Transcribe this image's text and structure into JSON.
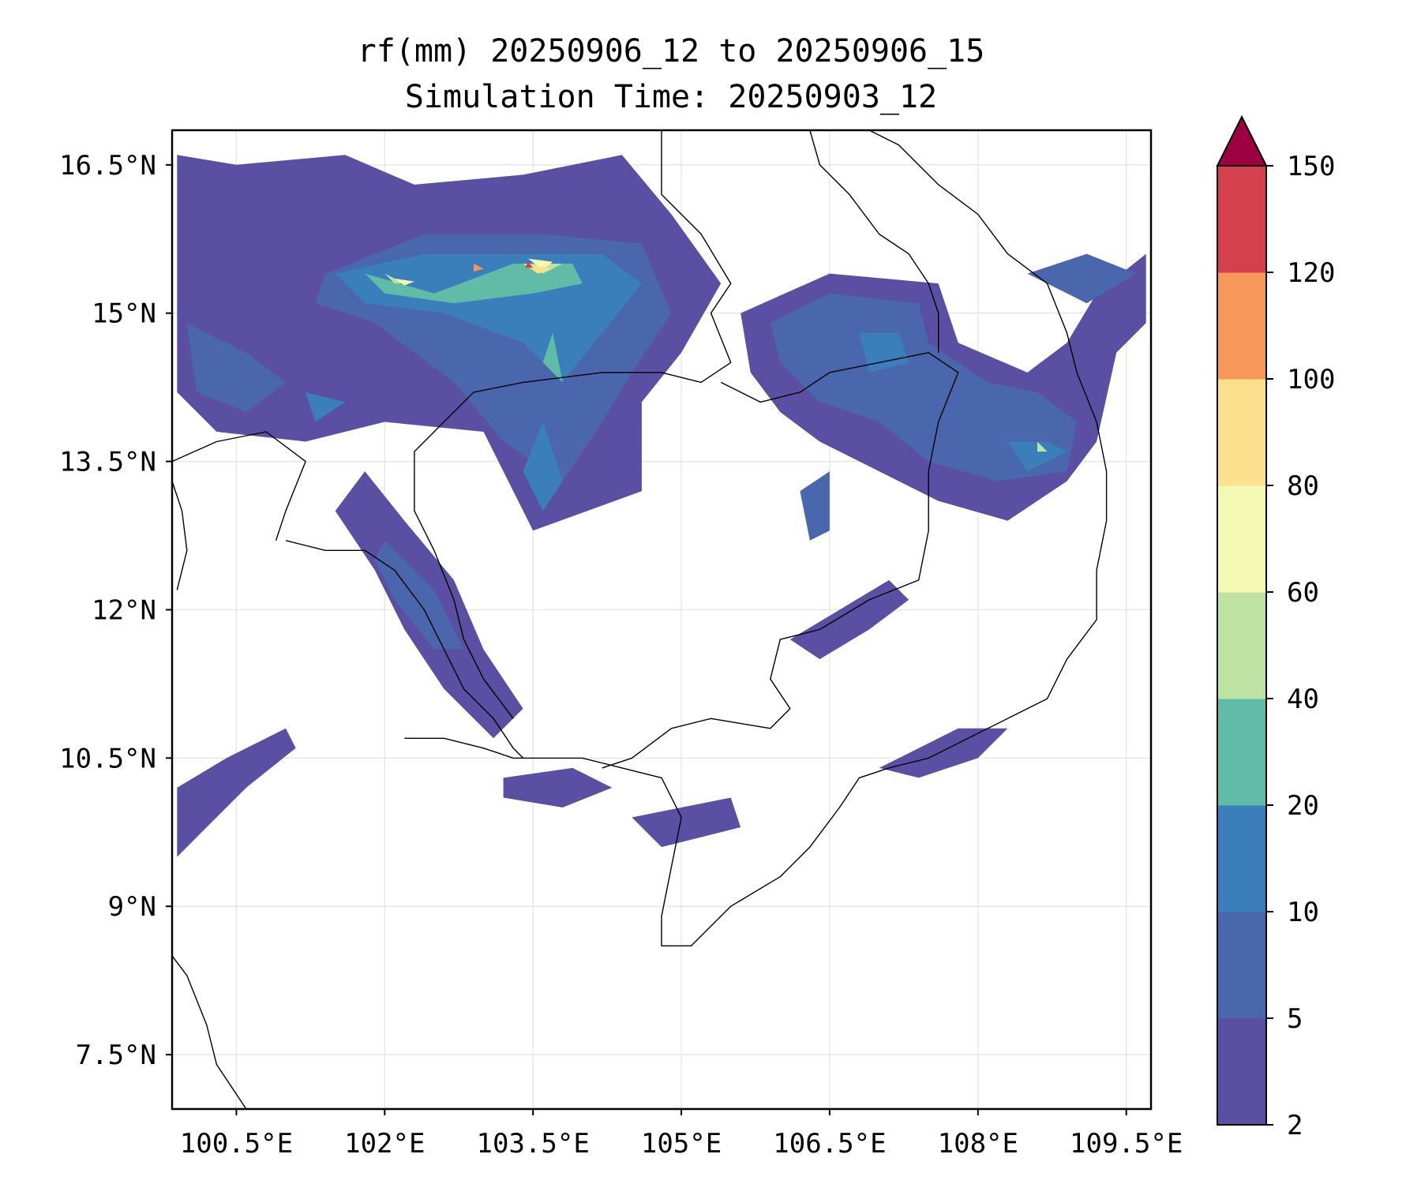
{
  "title": {
    "line1": "rf(mm) 20250906_12 to 20250906_15",
    "line2": "Simulation Time: 20250903_12"
  },
  "map": {
    "lon_range": [
      99.85,
      109.75
    ],
    "lat_range": [
      6.95,
      16.85
    ],
    "x_ticks": [
      {
        "value": 100.5,
        "label": "100.5°E"
      },
      {
        "value": 102,
        "label": "102°E"
      },
      {
        "value": 103.5,
        "label": "103.5°E"
      },
      {
        "value": 105,
        "label": "105°E"
      },
      {
        "value": 106.5,
        "label": "106.5°E"
      },
      {
        "value": 108,
        "label": "108°E"
      },
      {
        "value": 109.5,
        "label": "109.5°E"
      }
    ],
    "y_ticks": [
      {
        "value": 16.5,
        "label": "16.5°N"
      },
      {
        "value": 15,
        "label": "15°N"
      },
      {
        "value": 13.5,
        "label": "13.5°N"
      },
      {
        "value": 12,
        "label": "12°N"
      },
      {
        "value": 10.5,
        "label": "10.5°N"
      },
      {
        "value": 9,
        "label": "9°N"
      },
      {
        "value": 7.5,
        "label": "7.5°N"
      }
    ],
    "grid": true
  },
  "colorbar": {
    "levels": [
      "2",
      "5",
      "10",
      "20",
      "40",
      "60",
      "80",
      "100",
      "120",
      "150"
    ],
    "colors": [
      "#5a4fa2",
      "#4a66ad",
      "#3a7fbb",
      "#60bba7",
      "#bde3a3",
      "#f3f9b2",
      "#fbe08e",
      "#f7985a",
      "#d5404f"
    ],
    "extend_color": "#9e0142"
  },
  "rain_regions": [
    {
      "level": 0,
      "points": [
        [
          100.5,
          16.5
        ],
        [
          101.6,
          16.6
        ],
        [
          102.3,
          16.3
        ],
        [
          103.4,
          16.4
        ],
        [
          104.4,
          16.6
        ],
        [
          104.9,
          16.0
        ],
        [
          105.4,
          15.3
        ],
        [
          105.0,
          14.6
        ],
        [
          104.6,
          14.1
        ],
        [
          104.6,
          13.2
        ],
        [
          103.5,
          12.8
        ],
        [
          103.0,
          13.8
        ],
        [
          102.0,
          13.9
        ],
        [
          101.2,
          13.7
        ],
        [
          100.3,
          13.8
        ],
        [
          99.9,
          14.2
        ],
        [
          99.9,
          16.6
        ]
      ]
    },
    {
      "level": 0,
      "points": [
        [
          105.6,
          15.0
        ],
        [
          106.5,
          15.4
        ],
        [
          107.6,
          15.3
        ],
        [
          107.8,
          14.7
        ],
        [
          108.5,
          14.4
        ],
        [
          108.9,
          14.7
        ],
        [
          109.2,
          15.2
        ],
        [
          109.7,
          15.6
        ],
        [
          109.7,
          14.9
        ],
        [
          109.4,
          14.6
        ],
        [
          109.2,
          13.7
        ],
        [
          108.9,
          13.3
        ],
        [
          108.3,
          12.9
        ],
        [
          107.6,
          13.1
        ],
        [
          107.0,
          13.4
        ],
        [
          106.4,
          13.7
        ],
        [
          106.0,
          14.0
        ],
        [
          105.7,
          14.4
        ]
      ]
    },
    {
      "level": 0,
      "points": [
        [
          101.8,
          13.4
        ],
        [
          102.2,
          12.9
        ],
        [
          102.7,
          12.3
        ],
        [
          103.0,
          11.6
        ],
        [
          103.4,
          11.0
        ],
        [
          103.1,
          10.7
        ],
        [
          102.6,
          11.2
        ],
        [
          102.2,
          11.8
        ],
        [
          101.9,
          12.4
        ],
        [
          101.5,
          13.0
        ]
      ]
    },
    {
      "level": 0,
      "points": [
        [
          99.9,
          10.2
        ],
        [
          100.4,
          10.5
        ],
        [
          101.0,
          10.8
        ],
        [
          101.1,
          10.6
        ],
        [
          100.6,
          10.2
        ],
        [
          100.2,
          9.8
        ],
        [
          99.9,
          9.5
        ]
      ]
    },
    {
      "level": 0,
      "points": [
        [
          103.2,
          10.3
        ],
        [
          103.9,
          10.4
        ],
        [
          104.3,
          10.2
        ],
        [
          103.8,
          10.0
        ],
        [
          103.2,
          10.1
        ]
      ]
    },
    {
      "level": 0,
      "points": [
        [
          104.5,
          9.9
        ],
        [
          105.5,
          10.1
        ],
        [
          105.6,
          9.8
        ],
        [
          104.8,
          9.6
        ]
      ]
    },
    {
      "level": 0,
      "points": [
        [
          106.1,
          11.7
        ],
        [
          106.6,
          12.0
        ],
        [
          107.1,
          12.3
        ],
        [
          107.3,
          12.1
        ],
        [
          106.9,
          11.8
        ],
        [
          106.4,
          11.5
        ]
      ]
    },
    {
      "level": 0,
      "points": [
        [
          107.0,
          10.4
        ],
        [
          107.8,
          10.8
        ],
        [
          108.3,
          10.8
        ],
        [
          108.0,
          10.5
        ],
        [
          107.4,
          10.3
        ]
      ]
    },
    {
      "level": 1,
      "points": [
        [
          101.4,
          15.4
        ],
        [
          102.4,
          15.8
        ],
        [
          103.6,
          15.8
        ],
        [
          104.6,
          15.7
        ],
        [
          104.9,
          15.0
        ],
        [
          104.5,
          14.4
        ],
        [
          104.2,
          13.9
        ],
        [
          103.8,
          13.3
        ],
        [
          103.2,
          13.7
        ],
        [
          102.7,
          14.3
        ],
        [
          101.9,
          14.9
        ],
        [
          101.3,
          15.1
        ]
      ]
    },
    {
      "level": 1,
      "points": [
        [
          100.0,
          14.9
        ],
        [
          100.6,
          14.6
        ],
        [
          101.0,
          14.3
        ],
        [
          100.6,
          14.0
        ],
        [
          100.1,
          14.2
        ]
      ]
    },
    {
      "level": 1,
      "points": [
        [
          105.9,
          14.9
        ],
        [
          106.5,
          15.2
        ],
        [
          107.4,
          15.1
        ],
        [
          107.5,
          14.7
        ],
        [
          108.1,
          14.3
        ],
        [
          108.6,
          14.2
        ],
        [
          109.0,
          13.9
        ],
        [
          108.9,
          13.4
        ],
        [
          108.2,
          13.3
        ],
        [
          107.5,
          13.5
        ],
        [
          107.0,
          13.9
        ],
        [
          106.4,
          14.1
        ],
        [
          106.0,
          14.5
        ]
      ]
    },
    {
      "level": 1,
      "points": [
        [
          102.0,
          12.7
        ],
        [
          102.5,
          12.2
        ],
        [
          102.8,
          11.6
        ],
        [
          102.5,
          11.6
        ],
        [
          102.1,
          12.1
        ],
        [
          101.9,
          12.5
        ]
      ]
    },
    {
      "level": 1,
      "points": [
        [
          108.5,
          15.4
        ],
        [
          109.1,
          15.6
        ],
        [
          109.6,
          15.4
        ],
        [
          109.1,
          15.1
        ]
      ]
    },
    {
      "level": 1,
      "points": [
        [
          106.2,
          13.2
        ],
        [
          106.5,
          13.4
        ],
        [
          106.5,
          12.8
        ],
        [
          106.3,
          12.7
        ]
      ]
    },
    {
      "level": 2,
      "points": [
        [
          101.5,
          15.4
        ],
        [
          102.4,
          15.6
        ],
        [
          103.4,
          15.6
        ],
        [
          104.2,
          15.6
        ],
        [
          104.6,
          15.3
        ],
        [
          104.2,
          14.8
        ],
        [
          103.8,
          14.3
        ],
        [
          103.4,
          14.7
        ],
        [
          102.6,
          15.0
        ],
        [
          101.8,
          15.1
        ]
      ]
    },
    {
      "level": 2,
      "points": [
        [
          103.6,
          13.9
        ],
        [
          103.8,
          13.3
        ],
        [
          103.6,
          13.0
        ],
        [
          103.4,
          13.4
        ]
      ]
    },
    {
      "level": 2,
      "points": [
        [
          106.8,
          14.8
        ],
        [
          107.2,
          14.8
        ],
        [
          107.3,
          14.5
        ],
        [
          106.9,
          14.4
        ]
      ]
    },
    {
      "level": 2,
      "points": [
        [
          108.3,
          13.7
        ],
        [
          108.7,
          13.7
        ],
        [
          108.9,
          13.6
        ],
        [
          108.5,
          13.4
        ]
      ]
    },
    {
      "level": 2,
      "points": [
        [
          101.2,
          14.2
        ],
        [
          101.6,
          14.1
        ],
        [
          101.3,
          13.9
        ]
      ]
    },
    {
      "level": 3,
      "points": [
        [
          101.8,
          15.4
        ],
        [
          102.5,
          15.2
        ],
        [
          103.3,
          15.5
        ],
        [
          103.9,
          15.5
        ],
        [
          104.0,
          15.3
        ],
        [
          103.5,
          15.2
        ],
        [
          102.7,
          15.1
        ],
        [
          102.0,
          15.2
        ]
      ]
    },
    {
      "level": 3,
      "points": [
        [
          103.7,
          14.8
        ],
        [
          103.8,
          14.3
        ],
        [
          103.6,
          14.5
        ]
      ]
    },
    {
      "level": 4,
      "points": [
        [
          102.0,
          15.4
        ],
        [
          102.2,
          15.3
        ],
        [
          102.3,
          15.3
        ],
        [
          102.1,
          15.3
        ]
      ]
    },
    {
      "level": 4,
      "points": [
        [
          103.4,
          15.5
        ],
        [
          103.8,
          15.5
        ],
        [
          103.6,
          15.4
        ]
      ]
    },
    {
      "level": 4,
      "points": [
        [
          108.6,
          13.7
        ],
        [
          108.7,
          13.6
        ],
        [
          108.6,
          13.6
        ]
      ]
    },
    {
      "level": 5,
      "points": [
        [
          102.1,
          15.35
        ],
        [
          102.3,
          15.32
        ],
        [
          102.2,
          15.28
        ]
      ]
    },
    {
      "level": 5,
      "points": [
        [
          103.45,
          15.55
        ],
        [
          103.7,
          15.52
        ],
        [
          103.6,
          15.44
        ]
      ]
    },
    {
      "level": 6,
      "points": [
        [
          103.4,
          15.5
        ],
        [
          103.7,
          15.45
        ],
        [
          103.55,
          15.4
        ]
      ]
    },
    {
      "level": 7,
      "points": [
        [
          102.9,
          15.5
        ],
        [
          103.0,
          15.45
        ],
        [
          102.9,
          15.42
        ]
      ]
    },
    {
      "level": 8,
      "points": [
        [
          103.45,
          15.52
        ],
        [
          103.5,
          15.46
        ],
        [
          103.42,
          15.46
        ]
      ]
    }
  ],
  "coastlines": [
    [
      [
        102.2,
        10.7
      ],
      [
        102.6,
        10.7
      ],
      [
        103.0,
        10.6
      ],
      [
        103.3,
        10.5
      ],
      [
        103.6,
        10.5
      ],
      [
        104.0,
        10.5
      ],
      [
        104.4,
        10.4
      ],
      [
        104.8,
        10.3
      ],
      [
        105.0,
        9.9
      ],
      [
        104.9,
        9.4
      ],
      [
        104.8,
        8.9
      ],
      [
        104.8,
        8.6
      ],
      [
        105.1,
        8.6
      ],
      [
        105.5,
        9.0
      ],
      [
        106.0,
        9.3
      ],
      [
        106.3,
        9.6
      ],
      [
        106.6,
        10.0
      ],
      [
        106.8,
        10.3
      ],
      [
        107.1,
        10.4
      ],
      [
        107.5,
        10.5
      ],
      [
        107.9,
        10.7
      ],
      [
        108.3,
        10.9
      ],
      [
        108.7,
        11.1
      ],
      [
        108.9,
        11.5
      ],
      [
        109.2,
        11.9
      ],
      [
        109.2,
        12.4
      ],
      [
        109.3,
        12.9
      ],
      [
        109.3,
        13.4
      ],
      [
        109.2,
        13.9
      ],
      [
        109.0,
        14.4
      ],
      [
        108.9,
        14.8
      ],
      [
        108.7,
        15.3
      ],
      [
        108.3,
        15.6
      ],
      [
        108.0,
        16.0
      ],
      [
        107.6,
        16.3
      ],
      [
        107.2,
        16.7
      ],
      [
        106.9,
        16.85
      ]
    ],
    [
      [
        101.0,
        12.7
      ],
      [
        101.4,
        12.6
      ],
      [
        101.8,
        12.6
      ],
      [
        102.1,
        12.4
      ],
      [
        102.4,
        12.0
      ],
      [
        102.6,
        11.6
      ],
      [
        102.8,
        11.2
      ],
      [
        103.1,
        10.9
      ],
      [
        103.3,
        10.6
      ],
      [
        103.4,
        10.5
      ]
    ],
    [
      [
        99.85,
        8.5
      ],
      [
        100.0,
        8.3
      ],
      [
        100.2,
        7.8
      ],
      [
        100.3,
        7.4
      ],
      [
        100.5,
        7.1
      ],
      [
        100.6,
        6.95
      ]
    ],
    [
      [
        99.85,
        13.3
      ],
      [
        99.95,
        13.0
      ],
      [
        100.0,
        12.6
      ],
      [
        99.9,
        12.2
      ]
    ]
  ],
  "borders": [
    [
      [
        104.8,
        16.85
      ],
      [
        104.8,
        16.2
      ],
      [
        105.2,
        15.8
      ],
      [
        105.5,
        15.3
      ],
      [
        105.3,
        15.0
      ],
      [
        105.5,
        14.5
      ],
      [
        105.2,
        14.3
      ],
      [
        104.8,
        14.4
      ],
      [
        104.2,
        14.4
      ],
      [
        103.4,
        14.3
      ],
      [
        102.9,
        14.2
      ],
      [
        102.6,
        13.9
      ],
      [
        102.3,
        13.6
      ],
      [
        102.3,
        13.0
      ],
      [
        102.5,
        12.6
      ],
      [
        102.7,
        12.1
      ],
      [
        102.8,
        11.7
      ],
      [
        103.0,
        11.3
      ],
      [
        103.3,
        10.9
      ]
    ],
    [
      [
        105.4,
        14.3
      ],
      [
        105.8,
        14.1
      ],
      [
        106.2,
        14.2
      ],
      [
        106.5,
        14.4
      ],
      [
        107.0,
        14.5
      ],
      [
        107.5,
        14.6
      ],
      [
        107.8,
        14.4
      ],
      [
        107.6,
        13.9
      ],
      [
        107.5,
        13.4
      ],
      [
        107.5,
        12.8
      ],
      [
        107.4,
        12.3
      ],
      [
        106.9,
        12.1
      ],
      [
        106.4,
        11.8
      ],
      [
        106.0,
        11.7
      ],
      [
        105.9,
        11.3
      ],
      [
        106.1,
        11.0
      ],
      [
        105.9,
        10.8
      ],
      [
        105.3,
        10.9
      ],
      [
        104.9,
        10.8
      ],
      [
        104.5,
        10.5
      ],
      [
        104.2,
        10.4
      ]
    ],
    [
      [
        106.3,
        16.85
      ],
      [
        106.4,
        16.5
      ],
      [
        106.7,
        16.2
      ],
      [
        107.0,
        15.8
      ],
      [
        107.3,
        15.6
      ],
      [
        107.5,
        15.3
      ],
      [
        107.6,
        15.0
      ],
      [
        107.6,
        14.6
      ]
    ],
    [
      [
        99.85,
        13.5
      ],
      [
        100.3,
        13.7
      ],
      [
        100.8,
        13.8
      ],
      [
        101.2,
        13.5
      ],
      [
        101.0,
        13.0
      ],
      [
        100.9,
        12.7
      ]
    ]
  ]
}
